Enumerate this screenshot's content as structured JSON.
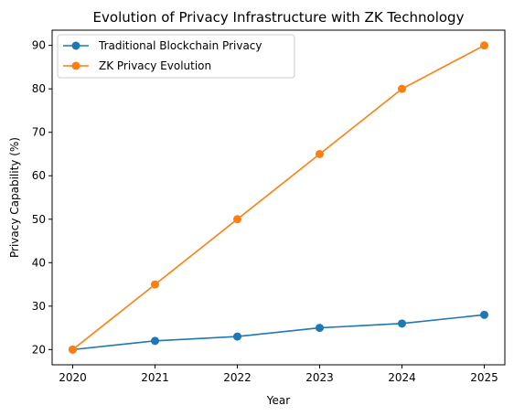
{
  "chart_data": {
    "type": "line",
    "title": "Evolution of Privacy Infrastructure with ZK Technology",
    "xlabel": "Year",
    "ylabel": "Privacy Capability (%)",
    "x": [
      2020,
      2021,
      2022,
      2023,
      2024,
      2025
    ],
    "xticks": [
      "2020",
      "2021",
      "2022",
      "2023",
      "2024",
      "2025"
    ],
    "yticks": [
      "20",
      "30",
      "40",
      "50",
      "60",
      "70",
      "80",
      "90"
    ],
    "xlim": [
      2019.75,
      2025.25
    ],
    "ylim": [
      16.5,
      93.5
    ],
    "grid": false,
    "legend_position": "upper-left",
    "series": [
      {
        "name": "Traditional Blockchain Privacy",
        "color": "#1f77b4",
        "values": [
          20,
          22,
          23,
          25,
          26,
          28
        ]
      },
      {
        "name": "ZK Privacy Evolution",
        "color": "#ff7f0e",
        "values": [
          20,
          35,
          50,
          65,
          80,
          90
        ]
      }
    ]
  }
}
